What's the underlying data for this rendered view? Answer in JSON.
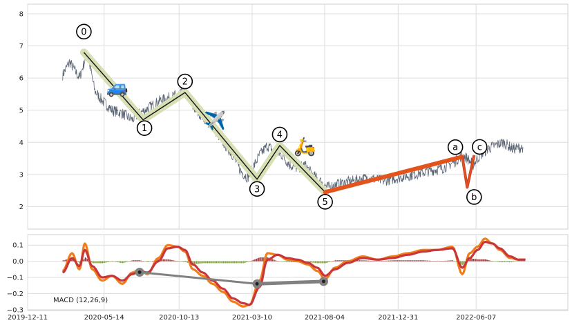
{
  "chart_data": [
    {
      "type": "line",
      "title": "",
      "xlabel": "",
      "ylabel": "",
      "ylim": [
        1.3,
        8.3
      ],
      "yticks": [
        2,
        3,
        4,
        5,
        6,
        7,
        8
      ],
      "grid": true,
      "series": [
        {
          "x": [
            "2020-02-20",
            "2020-03-05",
            "2020-03-25",
            "2020-04-10",
            "2020-04-25",
            "2020-05-10",
            "2020-05-30",
            "2020-06-20",
            "2020-07-10",
            "2020-07-25",
            "2020-08-15",
            "2020-09-05",
            "2020-09-25",
            "2020-10-15",
            "2020-10-25",
            "2020-11-10",
            "2020-11-30",
            "2020-12-20",
            "2021-01-10",
            "2021-01-30",
            "2021-02-15",
            "2021-03-01",
            "2021-03-15",
            "2021-03-25",
            "2021-04-10",
            "2021-04-25",
            "2021-05-10",
            "2021-05-25",
            "2021-06-10",
            "2021-06-25",
            "2021-07-10",
            "2021-07-25",
            "2021-08-10",
            "2021-09-01",
            "2021-10-01",
            "2021-11-01",
            "2021-12-01",
            "2022-01-01",
            "2022-02-01",
            "2022-03-01",
            "2022-04-01",
            "2022-04-25",
            "2022-05-10",
            "2022-05-20",
            "2022-06-01",
            "2022-06-15",
            "2022-07-01",
            "2022-07-15",
            "2022-08-01",
            "2022-08-20",
            "2022-09-10"
          ],
          "values": [
            6.1,
            6.5,
            6.0,
            6.8,
            5.6,
            5.3,
            5.0,
            4.9,
            4.7,
            4.9,
            5.1,
            5.3,
            5.4,
            5.5,
            5.6,
            5.1,
            4.8,
            4.5,
            4.0,
            3.6,
            3.1,
            2.9,
            3.3,
            3.6,
            3.9,
            3.7,
            3.6,
            3.3,
            3.2,
            3.3,
            3.0,
            2.8,
            2.6,
            2.7,
            2.8,
            2.9,
            2.8,
            2.9,
            3.0,
            3.1,
            3.2,
            3.4,
            3.6,
            3.5,
            3.3,
            3.6,
            3.8,
            3.9,
            4.0,
            3.8,
            3.85
          ]
        }
      ],
      "wave_points": [
        {
          "label": "0",
          "x": "2020-04-03",
          "y": 6.8
        },
        {
          "label": "1",
          "x": "2020-08-01",
          "y": 4.7
        },
        {
          "label": "2",
          "x": "2020-10-25",
          "y": 5.55
        },
        {
          "label": "3",
          "x": "2021-03-20",
          "y": 2.85
        },
        {
          "label": "4",
          "x": "2021-05-05",
          "y": 3.9
        },
        {
          "label": "5",
          "x": "2021-08-05",
          "y": 2.45
        },
        {
          "label": "a",
          "x": "2022-05-10",
          "y": 3.55
        },
        {
          "label": "b",
          "x": "2022-05-20",
          "y": 2.6
        },
        {
          "label": "c",
          "x": "2022-06-03",
          "y": 3.6
        }
      ],
      "markers": [
        {
          "icon": "car-icon",
          "glyph": "🚙",
          "x": "2020-06-10",
          "y": 5.75
        },
        {
          "icon": "airplane-icon",
          "glyph": "✈️",
          "x": "2020-12-25",
          "y": 4.7
        },
        {
          "icon": "scooter-icon",
          "glyph": "🛵",
          "x": "2021-06-25",
          "y": 3.9
        }
      ]
    },
    {
      "type": "line",
      "title": "",
      "xlabel": "",
      "ylabel": "",
      "xlim": [
        "2019-12-11",
        "2022-12-10"
      ],
      "xticks": [
        "2019-12-11",
        "2020-05-14",
        "2020-10-13",
        "2021-03-10",
        "2021-08-04",
        "2021-12-31",
        "2022-06-07"
      ],
      "ylim": [
        -0.305,
        0.165
      ],
      "yticks": [
        0.1,
        0.0,
        -0.1,
        -0.2,
        -0.3
      ],
      "ytick_labels": [
        "0.1",
        "0.0",
        "−0.1",
        "−0.2",
        "−0.3"
      ],
      "annotation": "MACD (12,26,9)",
      "series": [
        {
          "x": [
            "2020-02-20",
            "2020-03-10",
            "2020-03-25",
            "2020-04-05",
            "2020-04-20",
            "2020-05-10",
            "2020-05-30",
            "2020-06-20",
            "2020-07-10",
            "2020-07-25",
            "2020-08-10",
            "2020-09-01",
            "2020-09-20",
            "2020-10-10",
            "2020-10-25",
            "2020-11-10",
            "2020-11-30",
            "2020-12-20",
            "2021-01-10",
            "2021-01-30",
            "2021-02-20",
            "2021-03-05",
            "2021-03-25",
            "2021-04-10",
            "2021-05-01",
            "2021-05-20",
            "2021-06-10",
            "2021-07-01",
            "2021-07-20",
            "2021-08-05",
            "2021-08-25",
            "2021-09-20",
            "2021-10-20",
            "2021-11-20",
            "2021-12-20",
            "2022-01-20",
            "2022-02-20",
            "2022-03-20",
            "2022-04-20",
            "2022-05-10",
            "2022-05-25",
            "2022-06-10",
            "2022-06-25",
            "2022-07-10",
            "2022-07-25",
            "2022-08-15",
            "2022-09-01",
            "2022-09-15"
          ],
          "values": [
            -0.06,
            0.05,
            -0.05,
            0.11,
            -0.05,
            -0.12,
            -0.09,
            -0.14,
            -0.07,
            -0.05,
            -0.08,
            0.02,
            0.1,
            0.09,
            0.06,
            -0.05,
            -0.09,
            -0.14,
            -0.19,
            -0.25,
            -0.28,
            -0.27,
            -0.12,
            0.05,
            0.04,
            0.01,
            0.0,
            -0.02,
            -0.06,
            -0.11,
            -0.04,
            0.0,
            0.03,
            0.01,
            0.03,
            0.05,
            0.07,
            0.07,
            0.09,
            -0.08,
            0.05,
            0.09,
            0.14,
            0.11,
            0.07,
            0.02,
            0.01,
            0.01
          ]
        },
        {
          "x": [
            "2020-02-20",
            "2020-03-10",
            "2020-03-25",
            "2020-04-05",
            "2020-04-20",
            "2020-05-10",
            "2020-05-30",
            "2020-06-20",
            "2020-07-10",
            "2020-07-25",
            "2020-08-10",
            "2020-09-01",
            "2020-09-20",
            "2020-10-10",
            "2020-10-25",
            "2020-11-10",
            "2020-11-30",
            "2020-12-20",
            "2021-01-10",
            "2021-01-30",
            "2021-02-20",
            "2021-03-05",
            "2021-03-25",
            "2021-04-10",
            "2021-05-01",
            "2021-05-20",
            "2021-06-10",
            "2021-07-01",
            "2021-07-20",
            "2021-08-05",
            "2021-08-25",
            "2021-09-20",
            "2021-10-20",
            "2021-11-20",
            "2021-12-20",
            "2022-01-20",
            "2022-02-20",
            "2022-03-20",
            "2022-04-20",
            "2022-05-10",
            "2022-05-25",
            "2022-06-10",
            "2022-06-25",
            "2022-07-10",
            "2022-07-25",
            "2022-08-15",
            "2022-09-01",
            "2022-09-15"
          ],
          "values": [
            -0.07,
            0.02,
            -0.03,
            0.07,
            -0.03,
            -0.1,
            -0.09,
            -0.12,
            -0.08,
            -0.06,
            -0.07,
            0.0,
            0.08,
            0.09,
            0.07,
            -0.02,
            -0.07,
            -0.12,
            -0.17,
            -0.23,
            -0.26,
            -0.27,
            -0.16,
            0.01,
            0.04,
            0.02,
            0.01,
            -0.01,
            -0.04,
            -0.09,
            -0.05,
            -0.01,
            0.02,
            0.01,
            0.02,
            0.04,
            0.06,
            0.07,
            0.08,
            -0.04,
            0.02,
            0.07,
            0.12,
            0.11,
            0.08,
            0.03,
            0.01,
            0.01
          ]
        }
      ],
      "trend_points": [
        {
          "x": "2020-07-25",
          "y": -0.068
        },
        {
          "x": "2021-03-20",
          "y": -0.14
        },
        {
          "x": "2021-08-02",
          "y": -0.125
        }
      ]
    }
  ],
  "colors": {
    "price_line": "#5a6473",
    "wave_fill": "#d7dfb4",
    "wave_line": "#1a1a1a",
    "correction": "#e2541c",
    "correction_b": "#c7402b",
    "macd_orange": "#f07d1a",
    "macd_red": "#c8363a",
    "hist_pos": "#a13030",
    "hist_neg": "#78a32b",
    "trend_gray": "#808080",
    "grid": "#dcdcdc"
  }
}
